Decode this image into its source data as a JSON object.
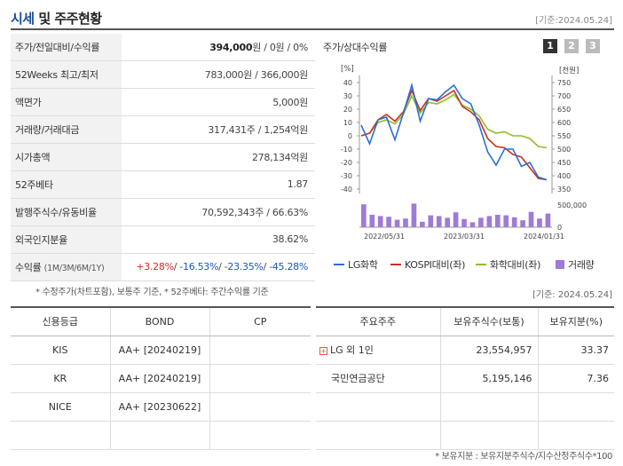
{
  "header": {
    "title": "시세",
    "subtitle": " 및 주주현황",
    "date": "[기준:2024.05.24]"
  },
  "info_rows": [
    {
      "label": "주가/전일대비/수익률",
      "value_bold": "394,000",
      "value_rest": "원 / 0원 / 0%"
    },
    {
      "label": "52Weeks 최고/최저",
      "value": "783,000원 / 366,000원"
    },
    {
      "label": "액면가",
      "value": "5,000원"
    },
    {
      "label": "거래량/거래대금",
      "value": "317,431주 / 1,254억원"
    },
    {
      "label": "시가총액",
      "value": "278,134억원"
    },
    {
      "label": "52주베타",
      "value": "1.87"
    },
    {
      "label": "발행주식수/유동비율",
      "value": "70,592,343주 / 66.63%"
    },
    {
      "label": "외국인지분율",
      "value": "38.62%"
    }
  ],
  "returns": {
    "label": "수익률",
    "periods": "(1M/3M/6M/1Y)",
    "r1": "+3.28%",
    "r2": "-16.53%",
    "r3": "-23.35%",
    "r4": "-45.28%",
    "sep": "/ "
  },
  "note_left": "* 수정주가(차트포함), 보통주 기준, * 52주베타: 주간수익률 기준",
  "note_date": "[기준: 2024.05.24]",
  "chart_panel": {
    "title": "주가/상대수익률",
    "tabs": [
      "1",
      "2",
      "3"
    ]
  },
  "chart_data": {
    "type": "line",
    "left_unit": "[%]",
    "right_unit": "[천원]",
    "left_ticks": [
      "40",
      "30",
      "20",
      "10",
      "0",
      "-10",
      "-20",
      "-30",
      "-40"
    ],
    "right_ticks": [
      "750",
      "700",
      "650",
      "600",
      "550",
      "500",
      "450",
      "400",
      "350"
    ],
    "volume_ticks": [
      "500,000",
      "0"
    ],
    "ylim_left": [
      -40,
      40
    ],
    "x_labels": [
      "2022/05/31",
      "2023/03/31",
      "2024/01/31"
    ],
    "series": [
      {
        "name": "LG화학",
        "color": "#2a6fd6",
        "values": [
          8,
          -6,
          12,
          14,
          -3,
          17,
          38,
          11,
          28,
          27,
          33,
          38,
          28,
          24,
          8,
          -12,
          -22,
          -10,
          -10,
          -23,
          -20,
          -31,
          -33
        ]
      },
      {
        "name": "KOSPI대비(좌)",
        "color": "#c8321e",
        "values": [
          0,
          2,
          12,
          16,
          11,
          18,
          34,
          19,
          28,
          26,
          30,
          34,
          22,
          18,
          12,
          -2,
          -8,
          -9,
          -14,
          -16,
          -24,
          -32,
          -33
        ]
      },
      {
        "name": "화학대비(좌)",
        "color": "#8fbf2a",
        "values": [
          0,
          2,
          10,
          12,
          9,
          16,
          30,
          17,
          25,
          24,
          27,
          31,
          23,
          20,
          15,
          5,
          2,
          3,
          0,
          0,
          -2,
          -8,
          -9
        ]
      }
    ],
    "volume": {
      "name": "거래량",
      "color": "#a07ad6",
      "values": [
        0.92,
        0.5,
        0.45,
        0.42,
        0.3,
        0.35,
        0.95,
        0.22,
        0.48,
        0.45,
        0.38,
        0.6,
        0.33,
        0.2,
        0.38,
        0.45,
        0.5,
        0.48,
        0.4,
        0.28,
        0.62,
        0.35,
        0.55
      ]
    }
  },
  "credit": {
    "headers": [
      "신용등급",
      "BOND",
      "CP"
    ],
    "rows": [
      {
        "agency": "KIS",
        "bond": "AA+  [20240219]",
        "cp": ""
      },
      {
        "agency": "KR",
        "bond": "AA+  [20240219]",
        "cp": ""
      },
      {
        "agency": "NICE",
        "bond": "AA+  [20230622]",
        "cp": ""
      },
      {
        "agency": "",
        "bond": "",
        "cp": ""
      }
    ]
  },
  "holders": {
    "headers": [
      "주요주주",
      "보유주식수(보통)",
      "보유지분(%)"
    ],
    "rows": [
      {
        "name": "LG 외 1인",
        "shares": "23,554,957",
        "pct": "33.37"
      },
      {
        "name": "국민연금공단",
        "shares": "5,195,146",
        "pct": "7.36"
      },
      {
        "name": "",
        "shares": "",
        "pct": ""
      },
      {
        "name": "",
        "shares": "",
        "pct": ""
      }
    ]
  },
  "bottom_note": "* 보유지분 : 보유지분주식수/지수산정주식수*100"
}
